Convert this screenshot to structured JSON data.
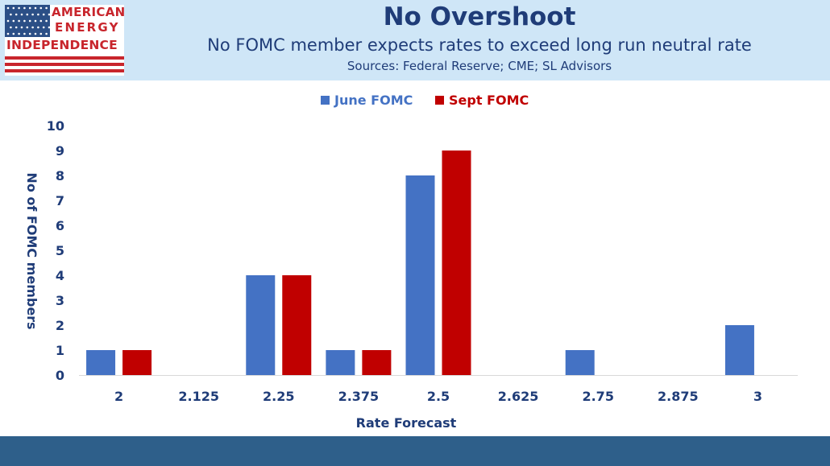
{
  "header": {
    "title": "No Overshoot",
    "subtitle": "No FOMC member expects rates to exceed long run neutral rate",
    "sources": "Sources: Federal Reserve; CME; SL Advisors"
  },
  "logo": {
    "line1": "AMERICAN",
    "line2": "ENERGY",
    "line3": "INDEPENDENCE"
  },
  "colors": {
    "header_bg": "#cfe6f7",
    "title_text": "#1f3c78",
    "axis_text": "#1f3c78",
    "june": "#4472c4",
    "sept": "#c00000",
    "footer": "#2e5f8a",
    "logo_red": "#c8252c",
    "flag_blue": "#2b4f86"
  },
  "chart_data": {
    "type": "bar",
    "categories": [
      "2",
      "2.125",
      "2.25",
      "2.375",
      "2.5",
      "2.625",
      "2.75",
      "2.875",
      "3"
    ],
    "series": [
      {
        "name": "June FOMC",
        "color": "#4472c4",
        "values": [
          1,
          0,
          4,
          1,
          8,
          0,
          1,
          0,
          2
        ]
      },
      {
        "name": "Sept FOMC",
        "color": "#c00000",
        "values": [
          1,
          0,
          4,
          1,
          9,
          0,
          0,
          0,
          0
        ]
      }
    ],
    "yticks": [
      0,
      1,
      2,
      3,
      4,
      5,
      6,
      7,
      8,
      9,
      10
    ],
    "ylim": [
      0,
      10
    ],
    "xlabel": "Rate Forecast",
    "ylabel": "No of FOMC members",
    "legend_position": "top",
    "grid": false
  }
}
